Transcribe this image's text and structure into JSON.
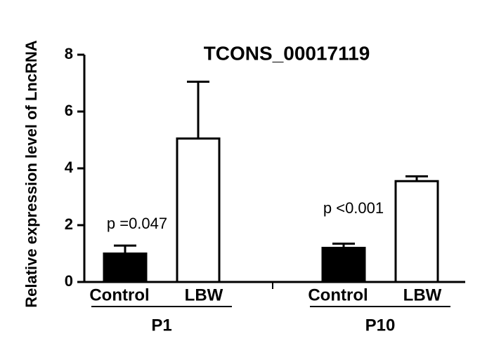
{
  "chart_data": {
    "type": "bar",
    "title": "TCONS_00017119",
    "y_label": "Relative expression level of LncRNA",
    "categories": [
      "P1",
      "P10"
    ],
    "series": [
      {
        "name": "Control",
        "color": "#000000",
        "values": [
          1.0,
          1.2
        ],
        "errors": [
          0.28,
          0.15
        ]
      },
      {
        "name": "LBW",
        "color": "#ffffff",
        "values": [
          5.05,
          3.55
        ],
        "errors": [
          2.0,
          0.17
        ]
      }
    ],
    "annotations": [
      "p =0.047",
      "p <0.001"
    ],
    "ylim": [
      0,
      8
    ],
    "yticks": [
      0,
      2,
      4,
      6,
      8
    ]
  }
}
